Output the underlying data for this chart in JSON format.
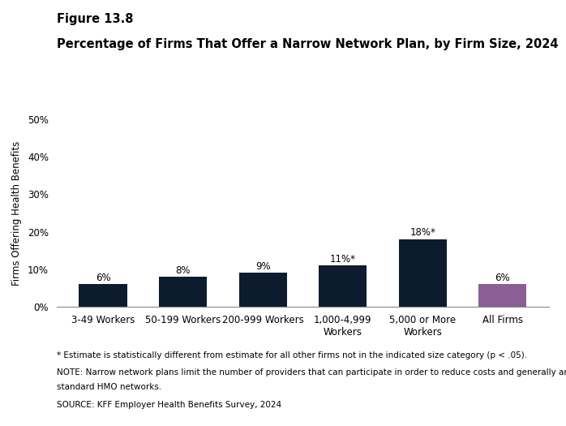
{
  "figure_label": "Figure 13.8",
  "title": "Percentage of Firms That Offer a Narrow Network Plan, by Firm Size, 2024",
  "categories": [
    "3-49 Workers",
    "50-199 Workers",
    "200-999 Workers",
    "1,000-4,999\nWorkers",
    "5,000 or More\nWorkers",
    "All Firms"
  ],
  "values": [
    6,
    8,
    9,
    11,
    18,
    6
  ],
  "bar_labels": [
    "6%",
    "8%",
    "9%",
    "11%*",
    "18%*",
    "6%"
  ],
  "bar_colors": [
    "#0d1b2e",
    "#0d1b2e",
    "#0d1b2e",
    "#0d1b2e",
    "#0d1b2e",
    "#8b5e96"
  ],
  "ylabel": "Firms Offering Health Benefits",
  "ylim": [
    0,
    50
  ],
  "yticks": [
    0,
    10,
    20,
    30,
    40,
    50
  ],
  "ytick_labels": [
    "0%",
    "10%",
    "20%",
    "30%",
    "40%",
    "50%"
  ],
  "footnote1": "* Estimate is statistically different from estimate for all other firms not in the indicated size category (p < .05).",
  "footnote2": "NOTE: Narrow network plans limit the number of providers that can participate in order to reduce costs and generally are more restrictive than",
  "footnote2b": "standard HMO networks.",
  "footnote3": "SOURCE: KFF Employer Health Benefits Survey, 2024",
  "background_color": "#ffffff",
  "bar_width": 0.6,
  "title_fontsize": 10.5,
  "figure_label_fontsize": 10.5,
  "axis_label_fontsize": 8.5,
  "tick_fontsize": 8.5,
  "bar_label_fontsize": 8.5,
  "footnote_fontsize": 7.5
}
